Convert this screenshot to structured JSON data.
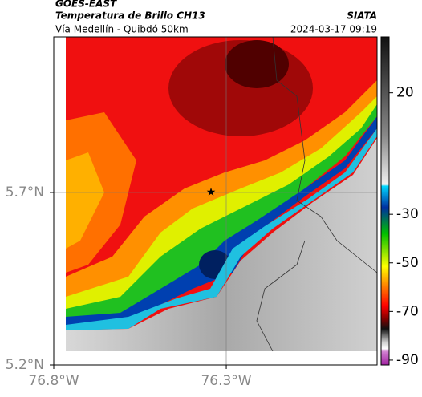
{
  "header": {
    "title": "GOES-EAST",
    "subtitle": "Temperatura de Brillo CH13",
    "source": "SIATA",
    "region": "Vía Medellín - Quibdó 50km",
    "datetime": "2024-03-17 09:19"
  },
  "map": {
    "xlim": [
      -76.8,
      -75.863
    ],
    "ylim": [
      5.2,
      6.151
    ],
    "xticks": [
      {
        "value": -76.8,
        "label": "76.8°W"
      },
      {
        "value": -76.3,
        "label": "76.3°W"
      }
    ],
    "yticks": [
      {
        "value": 5.2,
        "label": "5.2°N"
      },
      {
        "value": 5.7,
        "label": "5.7°N"
      }
    ]
  },
  "colorbar": {
    "clim": [
      -92,
      43
    ],
    "ticks": [
      20,
      -30,
      -50,
      -70,
      -90
    ]
  }
}
